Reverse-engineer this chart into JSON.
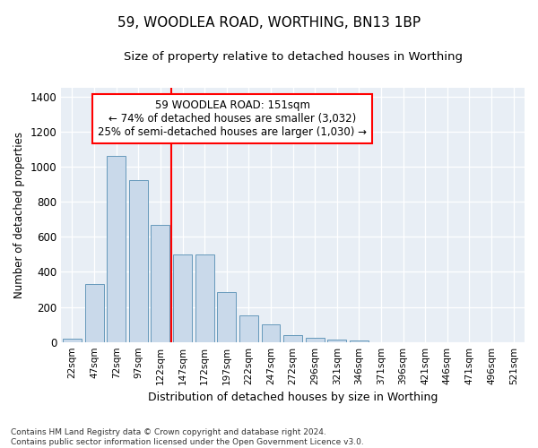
{
  "title": "59, WOODLEA ROAD, WORTHING, BN13 1BP",
  "subtitle": "Size of property relative to detached houses in Worthing",
  "xlabel": "Distribution of detached houses by size in Worthing",
  "ylabel": "Number of detached properties",
  "footnote": "Contains HM Land Registry data © Crown copyright and database right 2024.\nContains public sector information licensed under the Open Government Licence v3.0.",
  "bar_values": [
    20,
    330,
    1060,
    925,
    670,
    500,
    500,
    285,
    150,
    100,
    40,
    25,
    15,
    10,
    0,
    0,
    0,
    0,
    0,
    0,
    0
  ],
  "categories": [
    "22sqm",
    "47sqm",
    "72sqm",
    "97sqm",
    "122sqm",
    "147sqm",
    "172sqm",
    "197sqm",
    "222sqm",
    "247sqm",
    "272sqm",
    "296sqm",
    "321sqm",
    "346sqm",
    "371sqm",
    "396sqm",
    "421sqm",
    "446sqm",
    "471sqm",
    "496sqm",
    "521sqm"
  ],
  "bar_color": "#c9d9ea",
  "bar_edge_color": "#6699bb",
  "vline_color": "red",
  "vline_pos": 4.5,
  "annotation_text": "59 WOODLEA ROAD: 151sqm\n← 74% of detached houses are smaller (3,032)\n25% of semi-detached houses are larger (1,030) →",
  "annotation_box_color": "white",
  "annotation_box_edge": "red",
  "ylim": [
    0,
    1450
  ],
  "yticks": [
    0,
    200,
    400,
    600,
    800,
    1000,
    1200,
    1400
  ],
  "bg_color": "#ffffff",
  "plot_bg_color": "#e8eef5",
  "title_fontsize": 11,
  "subtitle_fontsize": 9.5
}
